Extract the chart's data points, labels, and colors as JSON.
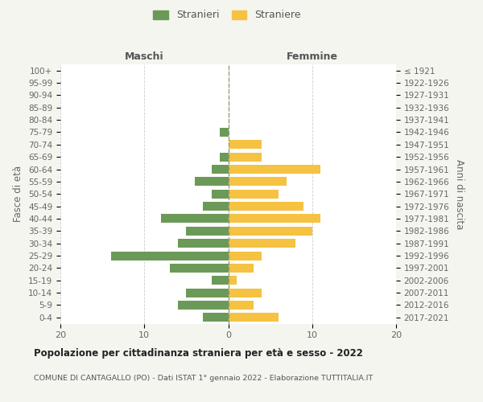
{
  "age_groups": [
    "0-4",
    "5-9",
    "10-14",
    "15-19",
    "20-24",
    "25-29",
    "30-34",
    "35-39",
    "40-44",
    "45-49",
    "50-54",
    "55-59",
    "60-64",
    "65-69",
    "70-74",
    "75-79",
    "80-84",
    "85-89",
    "90-94",
    "95-99",
    "100+"
  ],
  "birth_years": [
    "2017-2021",
    "2012-2016",
    "2007-2011",
    "2002-2006",
    "1997-2001",
    "1992-1996",
    "1987-1991",
    "1982-1986",
    "1977-1981",
    "1972-1976",
    "1967-1971",
    "1962-1966",
    "1957-1961",
    "1952-1956",
    "1947-1951",
    "1942-1946",
    "1937-1941",
    "1932-1936",
    "1927-1931",
    "1922-1926",
    "≤ 1921"
  ],
  "maschi": [
    3,
    6,
    5,
    2,
    7,
    14,
    6,
    5,
    8,
    3,
    2,
    4,
    2,
    1,
    0,
    1,
    0,
    0,
    0,
    0,
    0
  ],
  "femmine": [
    6,
    3,
    4,
    1,
    3,
    4,
    8,
    10,
    11,
    9,
    6,
    7,
    11,
    4,
    4,
    0,
    0,
    0,
    0,
    0,
    0
  ],
  "male_color": "#6b9a58",
  "female_color": "#f5c242",
  "background_color": "#f5f5f0",
  "plot_bg_color": "#ffffff",
  "title": "Popolazione per cittadinanza straniera per età e sesso - 2022",
  "subtitle": "COMUNE DI CANTAGALLO (PO) - Dati ISTAT 1° gennaio 2022 - Elaborazione TUTTITALIA.IT",
  "ylabel_left": "Fasce di età",
  "ylabel_right": "Anni di nascita",
  "label_maschi": "Maschi",
  "label_femmine": "Femmine",
  "legend_maschi": "Stranieri",
  "legend_femmine": "Straniere",
  "xlim": 20,
  "grid_color": "#cccccc",
  "center_line_color": "#999977"
}
